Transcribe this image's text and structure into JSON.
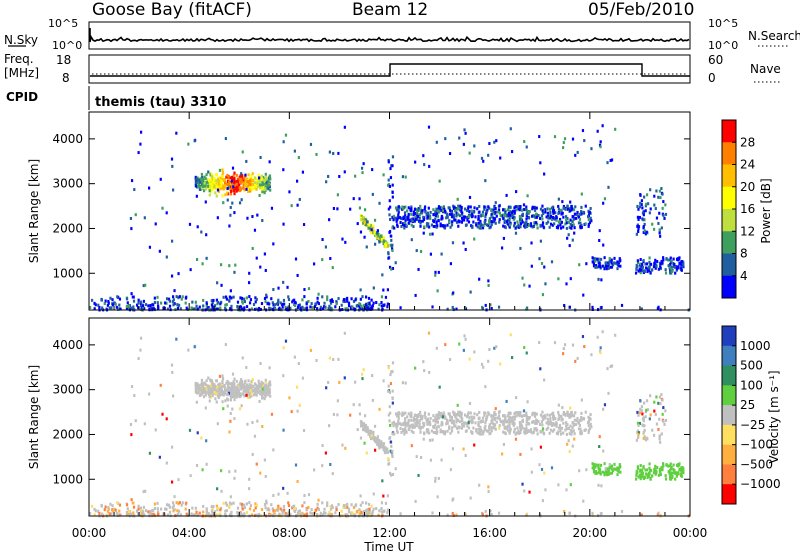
{
  "header": {
    "station": "Goose Bay (fitACF)",
    "beam": "Beam 12",
    "date": "05/Feb/2010"
  },
  "panels": {
    "nsky": {
      "label": "N.Sky",
      "ticks_left": [
        "10^5",
        "10^0"
      ],
      "right_label": "N.Search",
      "ticks_right": [
        "10^5",
        "10^0"
      ]
    },
    "freq": {
      "label_line1": "Freq.",
      "label_line2": "[MHz]",
      "ticks_left": [
        "18",
        "8"
      ],
      "ticks_right": [
        "60",
        "0"
      ],
      "right_label": "Nave"
    },
    "cpid": {
      "label": "CPID",
      "mode_text": "themis (tau) 3310"
    }
  },
  "chart_data": [
    {
      "type": "heatmap",
      "title": "",
      "ylabel": "Slant Range [km]",
      "xlabel": "",
      "ylim": [
        180,
        4600
      ],
      "yticks": [
        "4000",
        "3000",
        "2000",
        "1000"
      ],
      "colorbar": {
        "label": "Power [dB]",
        "ticks": [
          "28",
          "24",
          "20",
          "16",
          "12",
          "8",
          "4"
        ],
        "colors": [
          "#ff0000",
          "#ff7f00",
          "#ffbf00",
          "#ffff00",
          "#bfdf3f",
          "#3f9f5f",
          "#1f5f9f",
          "#0000ff"
        ]
      }
    },
    {
      "type": "heatmap",
      "title": "",
      "ylabel": "Slant Range [km]",
      "xlabel": "Time UT",
      "ylim": [
        180,
        4600
      ],
      "yticks": [
        "4000",
        "3000",
        "2000",
        "1000"
      ],
      "xticks": [
        "00:00",
        "04:00",
        "08:00",
        "12:00",
        "16:00",
        "20:00",
        "00:00"
      ],
      "xlim_hours": [
        0,
        24
      ],
      "colorbar": {
        "label": "Velocity [m s⁻¹]",
        "ticks": [
          "1000",
          "500",
          "100",
          "25",
          "−25",
          "−100",
          "−500",
          "−1000"
        ],
        "colors": [
          "#1f3fbf",
          "#3f7fbf",
          "#2f8f5f",
          "#5fcf3f",
          "#c0c0c0",
          "#ffdf5f",
          "#ffaf3f",
          "#ff7f3f",
          "#ff0000"
        ]
      }
    }
  ]
}
